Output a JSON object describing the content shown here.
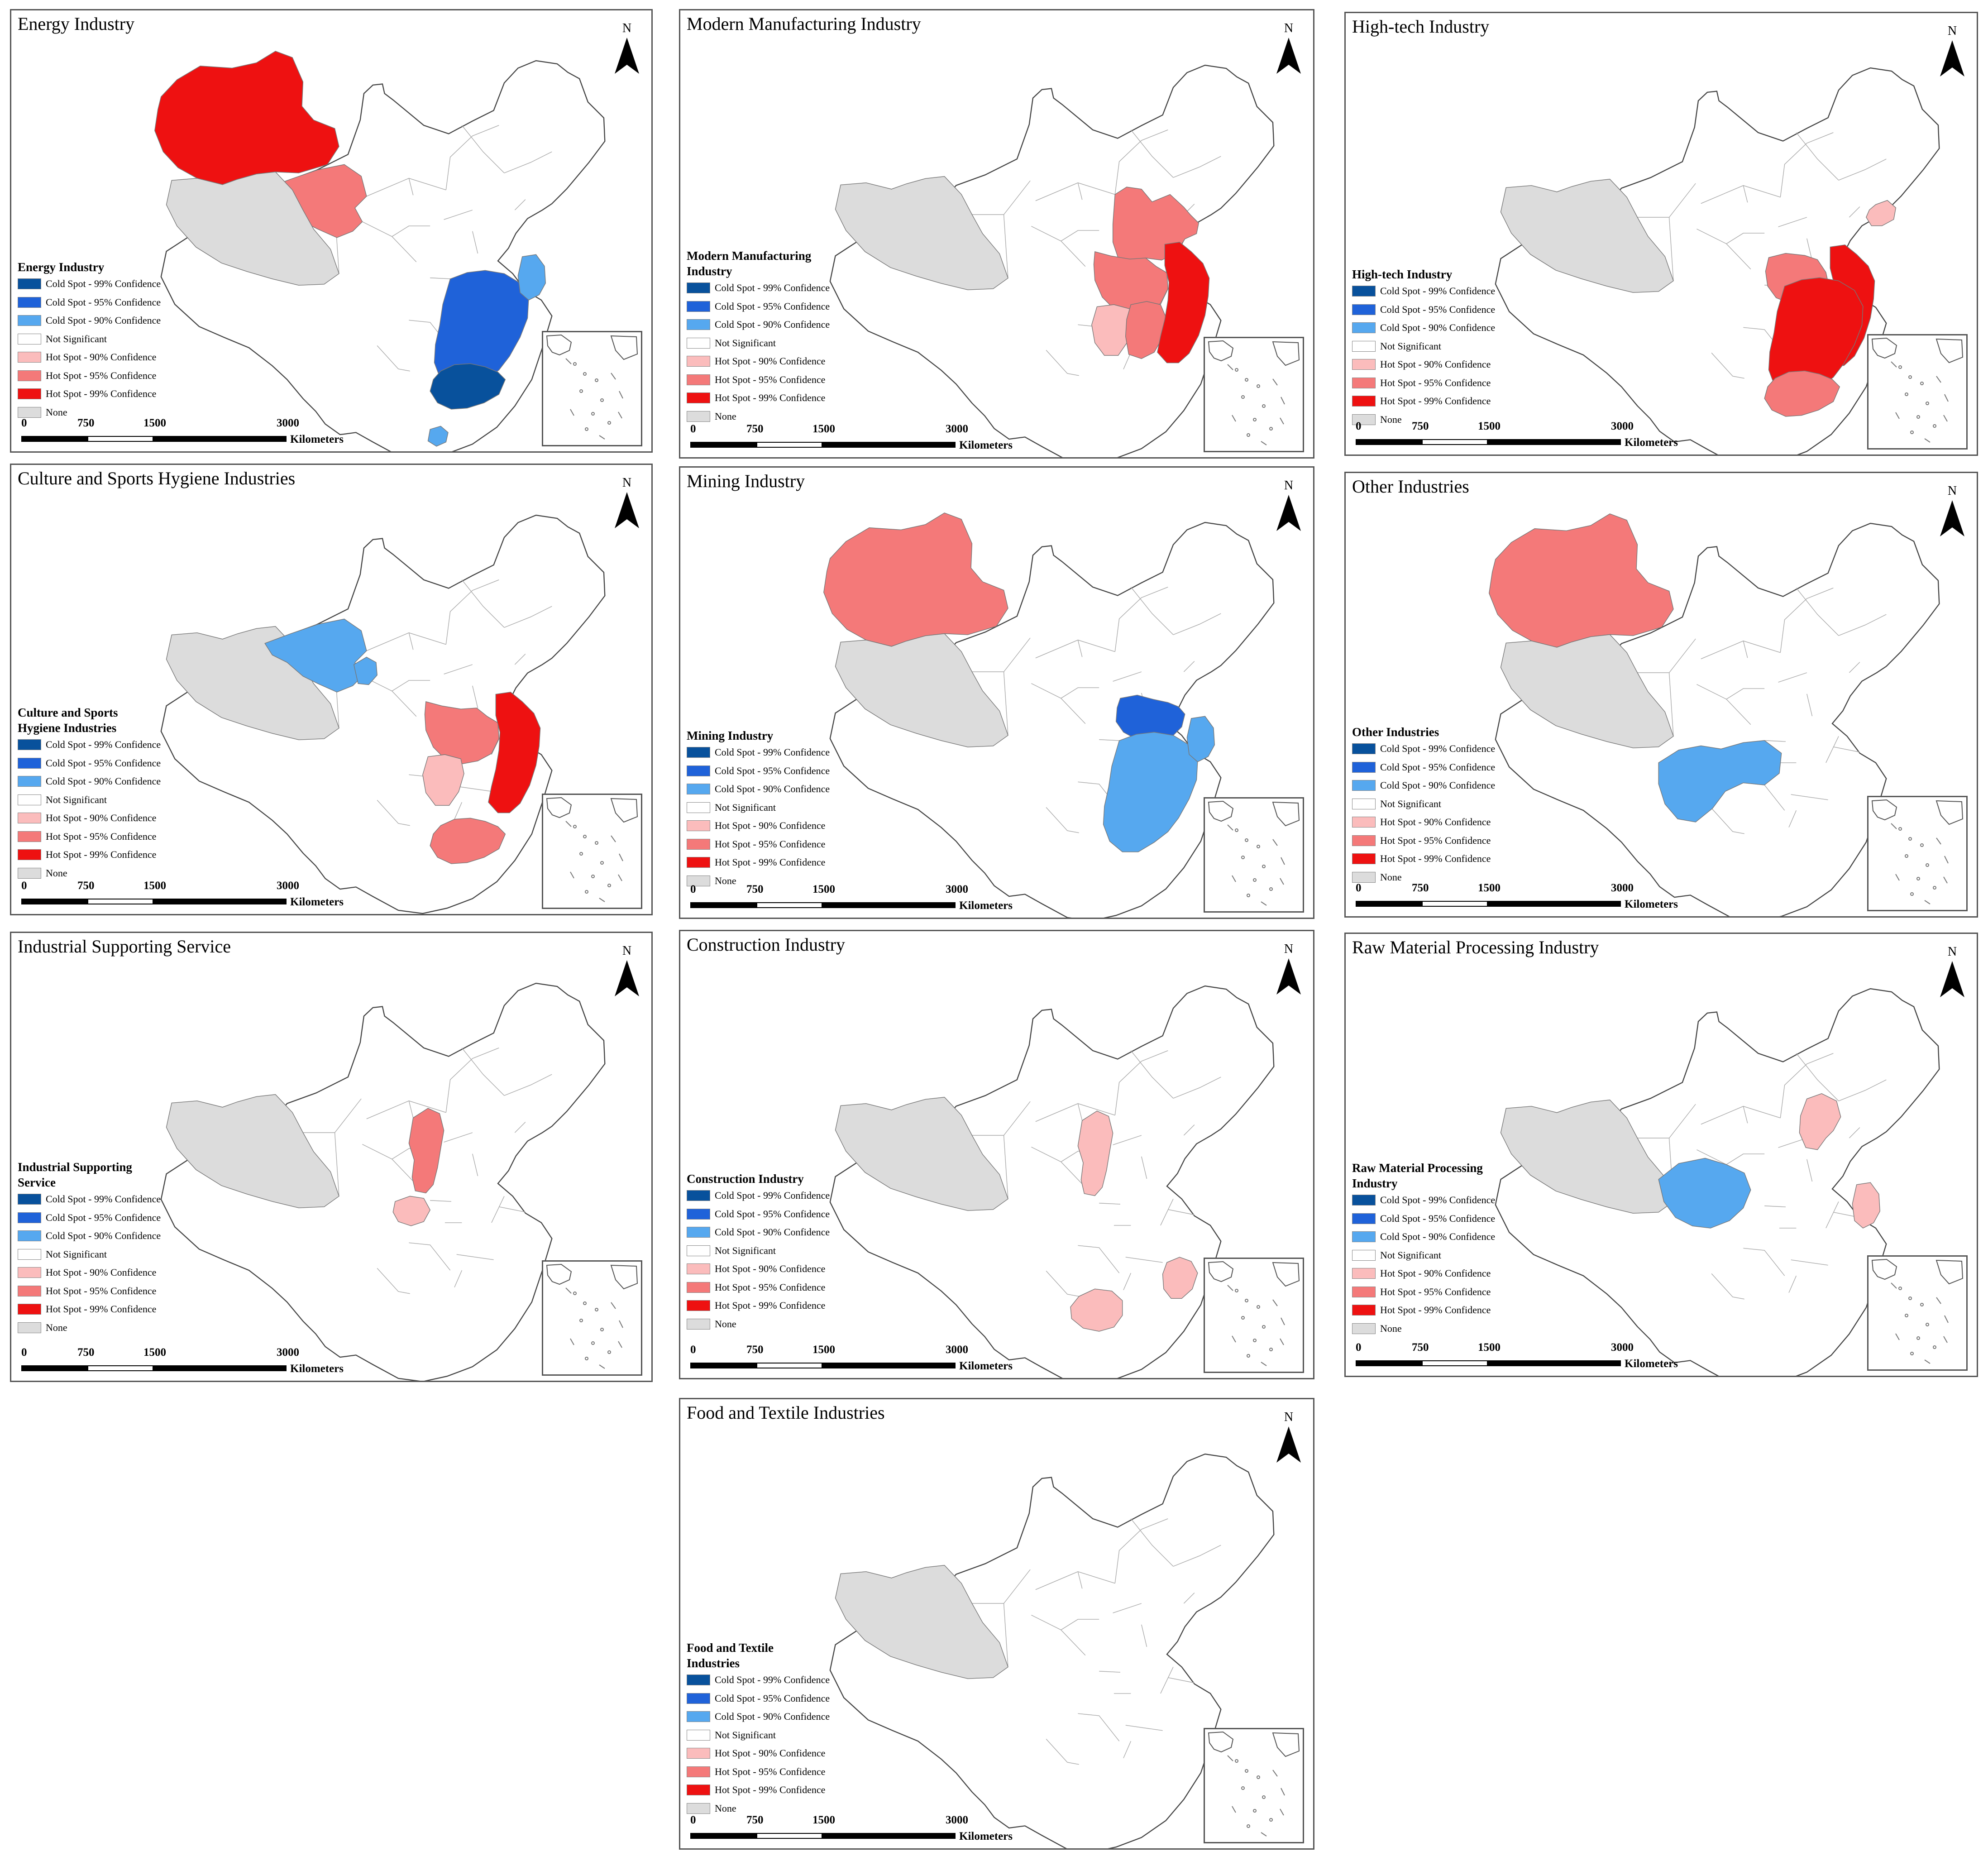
{
  "colors": {
    "cold99": "#08519c",
    "cold95": "#1f62d9",
    "cold90": "#56a8ef",
    "not_significant": "#ffffff",
    "hot90": "#fbbcbc",
    "hot95": "#f47979",
    "hot99": "#ee1111",
    "none": "#dcdcdc"
  },
  "legend_items": [
    {
      "label": "Cold Spot - 99% Confidence",
      "key": "cold99"
    },
    {
      "label": "Cold Spot - 95% Confidence",
      "key": "cold95"
    },
    {
      "label": "Cold Spot - 90% Confidence",
      "key": "cold90"
    },
    {
      "label": "Not Significant",
      "key": "not_significant"
    },
    {
      "label": "Hot Spot - 90% Confidence",
      "key": "hot90"
    },
    {
      "label": "Hot Spot - 95% Confidence",
      "key": "hot95"
    },
    {
      "label": "Hot Spot - 99% Confidence",
      "key": "hot99"
    },
    {
      "label": "None",
      "key": "none"
    }
  ],
  "north_label": "N",
  "scale": {
    "ticks": [
      "0",
      "750",
      "1500",
      "3000"
    ],
    "unit": "Kilometers"
  },
  "panels": [
    {
      "title": "Energy Industry",
      "legend_title": "Energy Industry",
      "regions": {
        "xinjiang": "hot99",
        "qinghai": "hot95",
        "tibet": "none",
        "southeast": "cold95",
        "guangdong": "cold99",
        "zhejiang": "cold90",
        "hainan": "cold90"
      }
    },
    {
      "title": "Modern Manufacturing Industry",
      "legend_title": "Modern Manufacturing Industry",
      "regions": {
        "tibet": "none",
        "north_china": "hot95",
        "central": "hot95",
        "hunan": "hot90",
        "jiangxi": "hot95",
        "east_coast": "hot99"
      }
    },
    {
      "title": "High-tech Industry",
      "legend_title": "High-tech Industry",
      "regions": {
        "tibet": "none",
        "liaoning": "hot90",
        "henan_hubei": "hot95",
        "east_coast": "hot99",
        "southeast": "hot99",
        "guangdong": "hot95"
      }
    },
    {
      "title": "Culture and Sports Hygiene Industries",
      "legend_title": "Culture and Sports Hygiene Industries",
      "regions": {
        "tibet": "none",
        "qinghai": "cold90",
        "gansu_strip": "cold90",
        "central": "hot95",
        "hunan": "hot90",
        "east_coast": "hot99",
        "guangdong": "hot95"
      }
    },
    {
      "title": "Mining Industry",
      "legend_title": "Mining Industry",
      "regions": {
        "xinjiang": "hot95",
        "tibet": "none",
        "henan_anhui": "cold95",
        "southeast": "cold90",
        "zhejiang": "cold90"
      }
    },
    {
      "title": "Other Industries",
      "legend_title": "Other Industries",
      "regions": {
        "xinjiang": "hot95",
        "tibet": "none",
        "southwest": "cold90"
      }
    },
    {
      "title": "Industrial Supporting Service",
      "legend_title": "Industrial Supporting Service",
      "regions": {
        "tibet": "none",
        "shaanxi": "hot95",
        "chongqing": "hot90"
      }
    },
    {
      "title": "Construction Industry",
      "legend_title": "Construction Industry",
      "regions": {
        "tibet": "none",
        "shaanxi": "hot90",
        "guangxi": "hot90",
        "fujian": "hot90"
      }
    },
    {
      "title": "Raw Material Processing Industry",
      "legend_title": "Raw Material Processing Industry",
      "regions": {
        "tibet": "none",
        "sichuan": "cold90",
        "shanxi_hebei": "hot90",
        "zhejiang": "hot90"
      }
    },
    {
      "title": "Food and Textile Industries",
      "legend_title": "Food and Textile Industries",
      "regions": {
        "tibet": "none"
      }
    }
  ]
}
